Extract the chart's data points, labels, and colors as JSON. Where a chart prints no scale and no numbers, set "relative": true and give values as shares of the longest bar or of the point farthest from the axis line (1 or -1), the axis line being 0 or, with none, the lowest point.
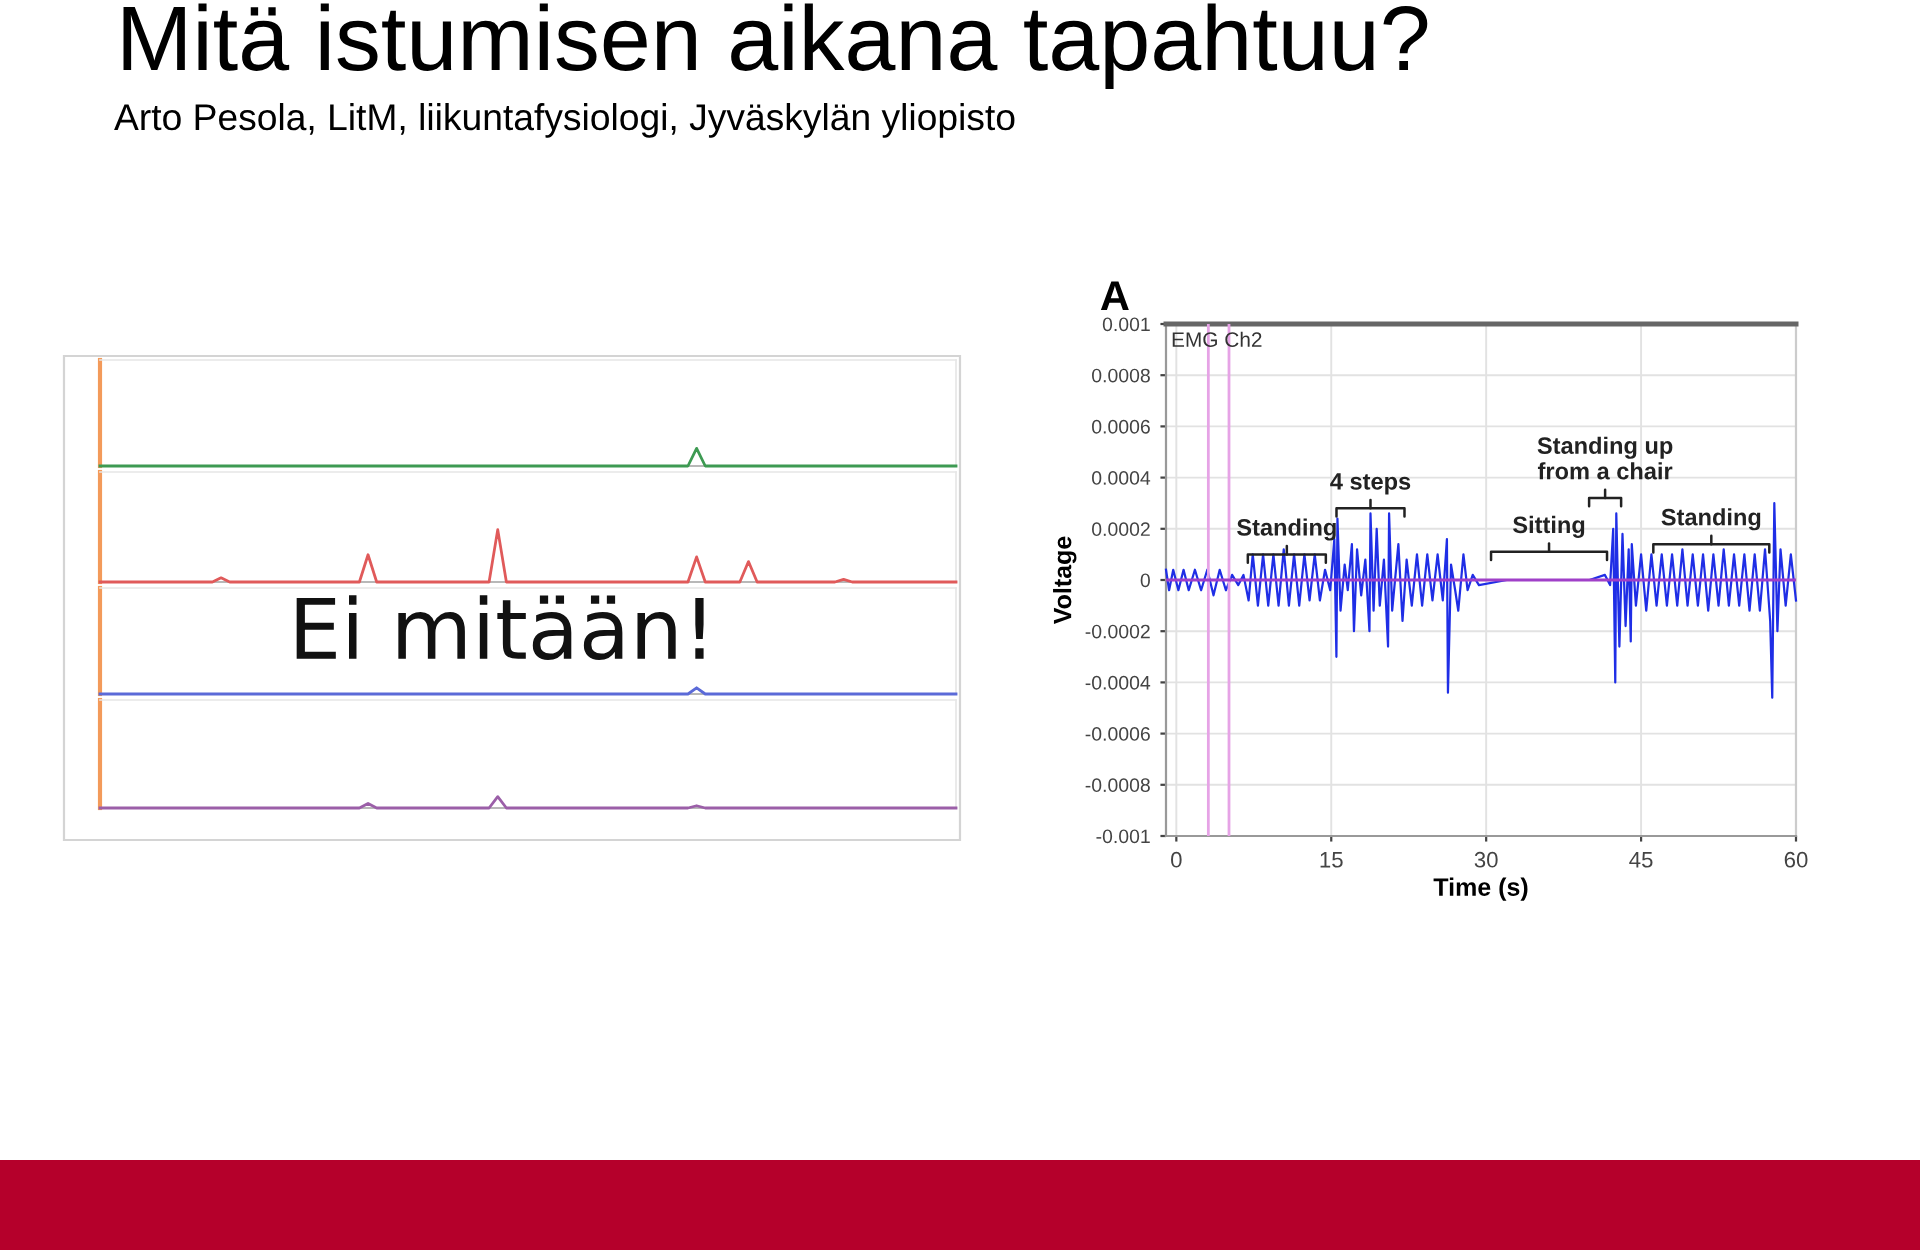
{
  "chart_data": [
    {
      "type": "line",
      "title": "Mitä istumisen aikana tapahtuu?",
      "subtitle": "Arto Pesola, LitM, liikuntafysiologi, Jyväskylän yliopisto",
      "relative": true,
      "color": "#3d9a52",
      "categories": [
        null,
        null,
        null,
        null,
        null,
        null,
        null,
        null,
        null,
        null,
        null,
        null,
        null,
        null,
        null,
        null,
        null,
        null,
        null,
        null,
        null,
        null,
        null,
        null,
        null,
        null,
        null,
        null,
        null,
        null,
        null,
        null,
        null,
        null,
        null,
        null,
        null,
        null,
        null,
        null,
        null,
        null,
        null,
        null,
        null,
        null,
        null,
        null,
        null,
        null,
        null,
        null,
        null,
        null,
        null,
        null,
        null,
        null,
        null,
        null,
        null,
        null,
        null,
        null,
        null,
        null,
        null,
        null,
        null,
        null,
        null,
        null,
        null,
        null,
        null,
        null,
        null,
        null,
        null,
        null,
        null,
        null,
        null,
        null,
        null,
        null,
        null,
        null,
        null,
        null,
        null,
        null,
        null,
        null,
        null,
        null,
        null,
        null,
        null,
        null
      ],
      "values": [
        0,
        0,
        0,
        0,
        0,
        0,
        0,
        0,
        0,
        0,
        0,
        0,
        0,
        0,
        0,
        0,
        0,
        0,
        0,
        0,
        0,
        0,
        0,
        0,
        0,
        0,
        0,
        0,
        0,
        0,
        0,
        0,
        0,
        0,
        0,
        0,
        0,
        0,
        0,
        0,
        0,
        0,
        0,
        0,
        0,
        0,
        0,
        0,
        0,
        0,
        0,
        0,
        0,
        0,
        0,
        0,
        0,
        0,
        0,
        0,
        0,
        0,
        0,
        0,
        0,
        0,
        0,
        0,
        0,
        1,
        0,
        0,
        0,
        0,
        0,
        0,
        0,
        0,
        0,
        0,
        0,
        0,
        0,
        0,
        0,
        0,
        0,
        0,
        0,
        0,
        0,
        0,
        0,
        0,
        0,
        0,
        0,
        0,
        0,
        0
      ]
    },
    {
      "type": "line",
      "relative": true,
      "color": "#e05a5a",
      "categories": [
        null,
        null,
        null,
        null,
        null,
        null,
        null,
        null,
        null,
        null,
        null,
        null,
        null,
        null,
        null,
        null,
        null,
        null,
        null,
        null,
        null,
        null,
        null,
        null,
        null,
        null,
        null,
        null,
        null,
        null,
        null,
        null,
        null,
        null,
        null,
        null,
        null,
        null,
        null,
        null,
        null,
        null,
        null,
        null,
        null,
        null,
        null,
        null,
        null,
        null,
        null,
        null,
        null,
        null,
        null,
        null,
        null,
        null,
        null,
        null,
        null,
        null,
        null,
        null,
        null,
        null,
        null,
        null,
        null,
        null,
        null,
        null,
        null,
        null,
        null,
        null,
        null,
        null,
        null,
        null,
        null,
        null,
        null,
        null,
        null,
        null,
        null,
        null,
        null,
        null,
        null,
        null,
        null,
        null,
        null,
        null,
        null,
        null,
        null,
        null
      ],
      "values": [
        0,
        0,
        0,
        0,
        0,
        0,
        0,
        0,
        0,
        0,
        0,
        0,
        0,
        0,
        0.08,
        0,
        0,
        0,
        0,
        0,
        0,
        0,
        0,
        0,
        0,
        0,
        0,
        0,
        0,
        0,
        0,
        0.52,
        0,
        0,
        0,
        0,
        0,
        0,
        0,
        0,
        0,
        0,
        0,
        0,
        0,
        0,
        1,
        0,
        0,
        0,
        0,
        0,
        0,
        0,
        0,
        0,
        0,
        0,
        0,
        0,
        0,
        0,
        0,
        0,
        0,
        0,
        0,
        0,
        0,
        0.48,
        0,
        0,
        0,
        0,
        0,
        0.39,
        0,
        0,
        0,
        0,
        0,
        0,
        0,
        0,
        0,
        0,
        0.05,
        0,
        0,
        0,
        0,
        0,
        0,
        0,
        0,
        0,
        0,
        0,
        0,
        0
      ]
    },
    {
      "type": "line",
      "relative": true,
      "color": "#5b6ad8",
      "annotations": [
        "Ei mitään!"
      ],
      "categories": [
        null,
        null,
        null,
        null,
        null,
        null,
        null,
        null,
        null,
        null,
        null,
        null,
        null,
        null,
        null,
        null,
        null,
        null,
        null,
        null,
        null,
        null,
        null,
        null,
        null,
        null,
        null,
        null,
        null,
        null,
        null,
        null,
        null,
        null,
        null,
        null,
        null,
        null,
        null,
        null,
        null,
        null,
        null,
        null,
        null,
        null,
        null,
        null,
        null,
        null,
        null,
        null,
        null,
        null,
        null,
        null,
        null,
        null,
        null,
        null,
        null,
        null,
        null,
        null,
        null,
        null,
        null,
        null,
        null,
        null,
        null,
        null,
        null,
        null,
        null,
        null,
        null,
        null,
        null,
        null,
        null,
        null,
        null,
        null,
        null,
        null,
        null,
        null,
        null,
        null,
        null,
        null,
        null,
        null,
        null,
        null,
        null,
        null,
        null,
        null
      ],
      "values": [
        0,
        0,
        0,
        0,
        0,
        0,
        0,
        0,
        0,
        0,
        0,
        0,
        0,
        0,
        0,
        0,
        0,
        0,
        0,
        0,
        0,
        0,
        0,
        0,
        0,
        0,
        0,
        0,
        0,
        0,
        0,
        0,
        0,
        0,
        0,
        0,
        0,
        0,
        0,
        0,
        0,
        0,
        0,
        0,
        0,
        0,
        0,
        0,
        0,
        0,
        0,
        0,
        0,
        0,
        0,
        0,
        0,
        0,
        0,
        0,
        0,
        0,
        0,
        0,
        0,
        0,
        0,
        0,
        0,
        1,
        0,
        0,
        0,
        0,
        0,
        0,
        0,
        0,
        0,
        0,
        0,
        0,
        0,
        0,
        0,
        0,
        0,
        0,
        0,
        0,
        0,
        0,
        0,
        0,
        0,
        0,
        0,
        0,
        0,
        0
      ]
    },
    {
      "type": "line",
      "relative": true,
      "color": "#9b5fa8",
      "categories": [
        null,
        null,
        null,
        null,
        null,
        null,
        null,
        null,
        null,
        null,
        null,
        null,
        null,
        null,
        null,
        null,
        null,
        null,
        null,
        null,
        null,
        null,
        null,
        null,
        null,
        null,
        null,
        null,
        null,
        null,
        null,
        null,
        null,
        null,
        null,
        null,
        null,
        null,
        null,
        null,
        null,
        null,
        null,
        null,
        null,
        null,
        null,
        null,
        null,
        null,
        null,
        null,
        null,
        null,
        null,
        null,
        null,
        null,
        null,
        null,
        null,
        null,
        null,
        null,
        null,
        null,
        null,
        null,
        null,
        null,
        null,
        null,
        null,
        null,
        null,
        null,
        null,
        null,
        null,
        null,
        null,
        null,
        null,
        null,
        null,
        null,
        null,
        null,
        null,
        null,
        null,
        null,
        null,
        null,
        null,
        null,
        null,
        null,
        null,
        null
      ],
      "values": [
        0,
        0,
        0,
        0,
        0,
        0,
        0,
        0,
        0,
        0,
        0,
        0,
        0,
        0,
        0,
        0,
        0,
        0,
        0,
        0,
        0,
        0,
        0,
        0,
        0,
        0,
        0,
        0,
        0,
        0,
        0,
        0.4,
        0,
        0,
        0,
        0,
        0,
        0,
        0,
        0,
        0,
        0,
        0,
        0,
        0,
        0,
        1,
        0,
        0,
        0,
        0,
        0,
        0,
        0,
        0,
        0,
        0,
        0,
        0,
        0,
        0,
        0,
        0,
        0,
        0,
        0,
        0,
        0,
        0,
        0.2,
        0,
        0,
        0,
        0,
        0,
        0,
        0,
        0,
        0,
        0,
        0,
        0,
        0,
        0,
        0,
        0,
        0,
        0,
        0,
        0,
        0,
        0,
        0,
        0,
        0,
        0,
        0,
        0,
        0,
        0
      ]
    },
    {
      "type": "line",
      "title": "A",
      "xlabel": "Time (s)",
      "ylabel": "Voltage",
      "color": "#1f2ee6",
      "grid": true,
      "annotations": [
        "EMG Ch2",
        {
          "text": "Standing",
          "x": 10.7,
          "y": 0.0001
        },
        {
          "text": "4 steps",
          "x": 18.8,
          "y": 0.00028
        },
        "Sitting",
        "Standing up\nfrom a chair",
        {
          "text": "Standing",
          "x": 51.8,
          "y": 0.00014
        }
      ],
      "xlim": [
        -1,
        60
      ],
      "xticks": [
        0,
        15,
        30,
        45,
        60
      ],
      "ylim": [
        -0.001,
        0.001
      ],
      "yticks": [
        -0.001,
        -0.0008,
        -0.0006,
        -0.0004,
        -0.0002,
        0,
        0.0002,
        0.0004,
        0.0006,
        0.0008,
        0.001
      ],
      "ref_lines": [
        {
          "axis": "x",
          "value": 3.1,
          "color": "#e6a3e6"
        },
        {
          "axis": "x",
          "value": 5.1,
          "color": "#e6a3e6"
        },
        {
          "axis": "y",
          "value": 0,
          "color": "#a040c8"
        }
      ],
      "x": [
        -1.0,
        -0.7,
        -0.3,
        0.2,
        0.7,
        1.2,
        1.8,
        2.4,
        3.0,
        3.6,
        4.2,
        4.8,
        5.4,
        6.0,
        6.5,
        7.0,
        7.4,
        7.9,
        8.4,
        8.9,
        9.4,
        9.9,
        10.4,
        10.9,
        11.4,
        11.9,
        12.4,
        12.9,
        13.4,
        13.9,
        14.4,
        14.9,
        15.3,
        15.5,
        15.6,
        15.9,
        16.3,
        16.6,
        17.0,
        17.2,
        17.5,
        17.9,
        18.3,
        18.7,
        18.8,
        19.1,
        19.4,
        19.7,
        20.1,
        20.5,
        20.6,
        20.9,
        21.5,
        21.9,
        22.3,
        22.8,
        23.3,
        23.8,
        24.3,
        24.8,
        25.3,
        25.8,
        26.2,
        26.3,
        26.6,
        27.0,
        27.3,
        27.8,
        28.2,
        28.7,
        29.3,
        32.0,
        36.0,
        40.0,
        41.5,
        42.0,
        42.3,
        42.5,
        42.6,
        42.9,
        43.2,
        43.5,
        43.8,
        44.0,
        44.1,
        44.5,
        45.0,
        45.5,
        46.0,
        46.5,
        47.0,
        47.5,
        48.0,
        48.5,
        49.0,
        49.5,
        50.0,
        50.5,
        51.0,
        51.5,
        52.0,
        52.5,
        53.0,
        53.5,
        54.0,
        54.5,
        55.0,
        55.5,
        56.0,
        56.5,
        57.0,
        57.5,
        57.7,
        57.9,
        58.2,
        58.5,
        59.0,
        59.5,
        60.0
      ],
      "values": [
        4e-05,
        -4e-05,
        4e-05,
        -4e-05,
        4e-05,
        -4e-05,
        4e-05,
        -4e-05,
        4e-05,
        -6e-05,
        4e-05,
        -4e-05,
        2e-05,
        -2e-05,
        2e-05,
        -8e-05,
        0.0001,
        -0.0001,
        0.0001,
        -0.0001,
        0.0001,
        -0.0001,
        0.00012,
        -0.0001,
        0.0001,
        -0.0001,
        0.0001,
        -8e-05,
        0.0001,
        -8e-05,
        4e-05,
        -4e-05,
        0.00016,
        -0.0003,
        0.00024,
        -0.00012,
        6e-05,
        -4e-05,
        0.00014,
        -0.0002,
        0.00012,
        -6e-05,
        8e-05,
        -0.0002,
        0.00026,
        -0.00012,
        0.0002,
        -0.0001,
        8e-05,
        -0.00026,
        0.00026,
        -0.00012,
        0.00014,
        -0.00016,
        8e-05,
        -0.0001,
        0.0001,
        -0.0001,
        0.0001,
        -8e-05,
        0.0001,
        -8e-05,
        0.00016,
        -0.00044,
        6e-05,
        -4e-05,
        -0.00012,
        0.0001,
        -4e-05,
        2e-05,
        -2e-05,
        0,
        0,
        0,
        2e-05,
        -2e-05,
        0.0002,
        -0.0004,
        0.00026,
        -0.00026,
        0.00018,
        -0.00018,
        0.00012,
        -0.00024,
        0.00014,
        -0.0001,
        0.0001,
        -0.00012,
        0.0001,
        -0.0001,
        0.0001,
        -0.0001,
        0.0001,
        -0.0001,
        0.00012,
        -0.0001,
        0.0001,
        -0.0001,
        0.0001,
        -0.00012,
        0.0001,
        -0.0001,
        0.00012,
        -0.0001,
        0.0001,
        -0.0001,
        0.0001,
        -0.00012,
        0.0001,
        -0.00012,
        0.00012,
        -0.00016,
        -0.00046,
        0.0003,
        -0.0002,
        0.00012,
        -0.0001,
        0.0001,
        -8e-05
      ]
    }
  ]
}
